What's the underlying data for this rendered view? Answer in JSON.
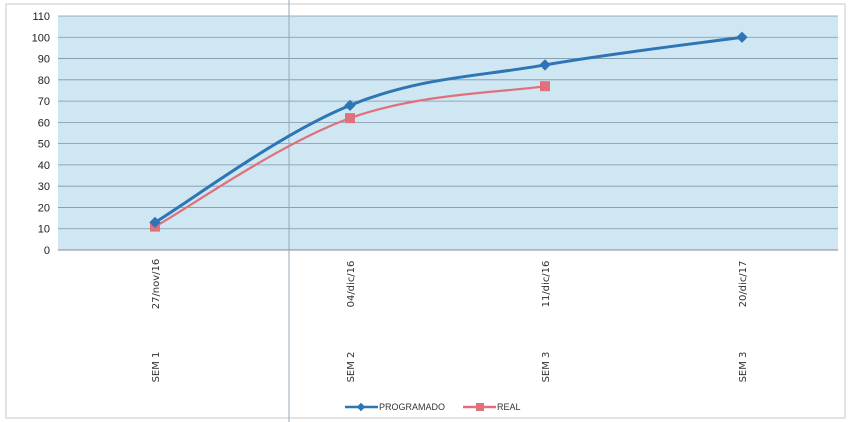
{
  "chart_data": {
    "type": "line",
    "categories": [
      [
        "SEM 1",
        "27/nov/16"
      ],
      [
        "SEM 2",
        "04/dic/16"
      ],
      [
        "SEM 3",
        "11/dic/16"
      ],
      [
        "SEM 3",
        "20/dic/17"
      ]
    ],
    "series": [
      {
        "name": "PROGRAMADO",
        "color": "#2e75b6",
        "values": [
          13,
          68,
          87,
          100
        ]
      },
      {
        "name": "REAL",
        "color": "#e0707b",
        "values": [
          11,
          62,
          77,
          null
        ]
      }
    ],
    "yticks": [
      "0",
      "10",
      "20",
      "30",
      "40",
      "50",
      "60",
      "70",
      "80",
      "90",
      "100",
      "110"
    ],
    "ylim": [
      0,
      110
    ],
    "grid": true,
    "legend": "bottom-center",
    "plot_background": "#cfe6f3"
  }
}
